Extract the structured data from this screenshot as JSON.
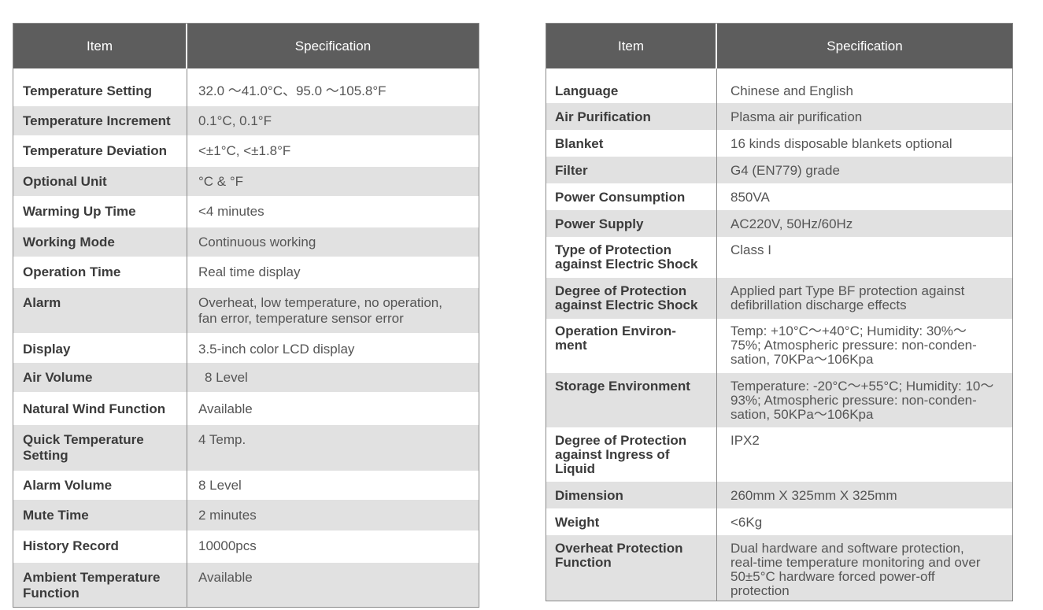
{
  "left_table": {
    "headers": {
      "item": "Item",
      "specification": "Specification"
    },
    "rows": [
      {
        "item": "Temperature Setting",
        "spec": "32.0 ～41.0°C、95.0 ～105.8°F"
      },
      {
        "item": "Temperature Increment",
        "spec": "0.1°C, 0.1°F"
      },
      {
        "item": "Temperature Deviation",
        "spec": "<±1°C, <±1.8°F"
      },
      {
        "item": "Optional Unit",
        "spec": "°C & °F"
      },
      {
        "item": "Warming Up Time",
        "spec": "<4 minutes"
      },
      {
        "item": "Working Mode",
        "spec": "Continuous working"
      },
      {
        "item": "Operation Time",
        "spec": "Real time display"
      },
      {
        "item": "Alarm",
        "spec": "Overheat, low temperature, no operation, fan error, temperature sensor error"
      },
      {
        "item": "Display",
        "spec": "3.5-inch color LCD display"
      },
      {
        "item": "Air Volume",
        "spec": "8 Level"
      },
      {
        "item": "Natural Wind Function",
        "spec": "Available"
      },
      {
        "item": "Quick Temperature Setting",
        "spec": "4 Temp."
      },
      {
        "item": "Alarm Volume",
        "spec": "8 Level"
      },
      {
        "item": "Mute Time",
        "spec": "2 minutes"
      },
      {
        "item": "History Record",
        "spec": "10000pcs"
      },
      {
        "item": "Ambient Temperature Function",
        "spec": "Available"
      }
    ]
  },
  "right_table": {
    "headers": {
      "item": "Item",
      "specification": "Specification"
    },
    "rows": [
      {
        "item": "Language",
        "spec": "Chinese and English"
      },
      {
        "item": "Air Purification",
        "spec": "Plasma air purification"
      },
      {
        "item": "Blanket",
        "spec": "16 kinds disposable blankets optional"
      },
      {
        "item": "Filter",
        "spec": "G4 (EN779) grade"
      },
      {
        "item": "Power Consumption",
        "spec": "850VA"
      },
      {
        "item": "Power Supply",
        "spec": "AC220V, 50Hz/60Hz"
      },
      {
        "item": "Type of Protection against Electric Shock",
        "spec": "Class I"
      },
      {
        "item": "Degree of Protection against Electric Shock",
        "spec": "Applied part Type BF protection against defibrillation discharge effects"
      },
      {
        "item": "Operation Environ-ment",
        "spec": "Temp: +10°C～+40°C; Humidity: 30%～75%; Atmospheric pressure: non-conden-sation, 70KPa～106Kpa"
      },
      {
        "item": "Storage Environment",
        "spec": "Temperature: -20°C～+55°C; Humidity: 10～93%; Atmospheric pressure: non-conden-sation, 50KPa～106Kpa"
      },
      {
        "item": "Degree of Protection against Ingress of Liquid",
        "spec": "IPX2"
      },
      {
        "item": "Dimension",
        "spec": "260mm X 325mm X 325mm"
      },
      {
        "item": "Weight",
        "spec": "<6Kg"
      },
      {
        "item": "Overheat Protection Function",
        "spec": "Dual hardware and software protection, real-time temperature monitoring and over 50±5°C hardware forced power-off protection"
      }
    ]
  }
}
